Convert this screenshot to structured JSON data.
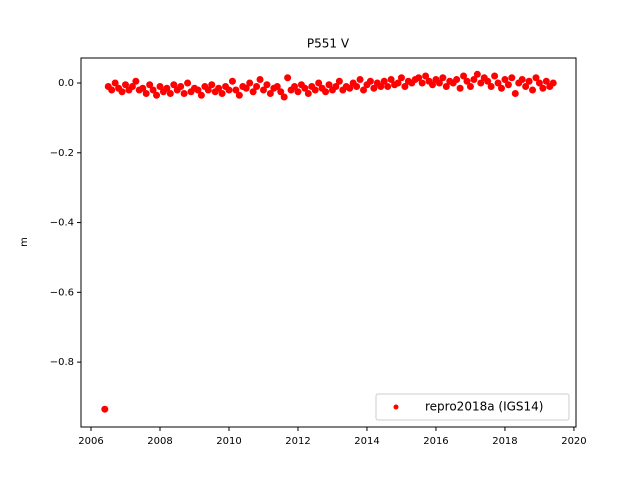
{
  "chart_data": {
    "type": "scatter",
    "title": "P551 V",
    "ylabel": "m",
    "x": [
      2006.4,
      2006.5,
      2006.6,
      2006.7,
      2006.8,
      2006.9,
      2007.0,
      2007.1,
      2007.2,
      2007.3,
      2007.4,
      2007.5,
      2007.6,
      2007.7,
      2007.8,
      2007.9,
      2008.0,
      2008.1,
      2008.2,
      2008.3,
      2008.4,
      2008.5,
      2008.6,
      2008.7,
      2008.8,
      2008.9,
      2009.0,
      2009.1,
      2009.2,
      2009.3,
      2009.4,
      2009.5,
      2009.6,
      2009.7,
      2009.8,
      2009.9,
      2010.0,
      2010.1,
      2010.2,
      2010.3,
      2010.4,
      2010.5,
      2010.6,
      2010.7,
      2010.8,
      2010.9,
      2011.0,
      2011.1,
      2011.2,
      2011.3,
      2011.4,
      2011.5,
      2011.6,
      2011.7,
      2011.8,
      2011.9,
      2012.0,
      2012.1,
      2012.2,
      2012.3,
      2012.4,
      2012.5,
      2012.6,
      2012.7,
      2012.8,
      2012.9,
      2013.0,
      2013.1,
      2013.2,
      2013.3,
      2013.4,
      2013.5,
      2013.6,
      2013.7,
      2013.8,
      2013.9,
      2014.0,
      2014.1,
      2014.2,
      2014.3,
      2014.4,
      2014.5,
      2014.6,
      2014.7,
      2014.8,
      2014.9,
      2015.0,
      2015.1,
      2015.2,
      2015.3,
      2015.4,
      2015.5,
      2015.6,
      2015.7,
      2015.8,
      2015.9,
      2016.0,
      2016.1,
      2016.2,
      2016.3,
      2016.4,
      2016.5,
      2016.6,
      2016.7,
      2016.8,
      2016.9,
      2017.0,
      2017.1,
      2017.2,
      2017.3,
      2017.4,
      2017.5,
      2017.6,
      2017.7,
      2017.8,
      2017.9,
      2018.0,
      2018.1,
      2018.2,
      2018.3,
      2018.4,
      2018.5,
      2018.6,
      2018.7,
      2018.8,
      2018.9,
      2019.0,
      2019.1,
      2019.2,
      2019.3,
      2019.4
    ],
    "series": [
      {
        "name": "repro2018a (IGS14)",
        "color": "#ff0000",
        "values": [
          -0.935,
          -0.01,
          -0.02,
          0.0,
          -0.015,
          -0.025,
          -0.005,
          -0.02,
          -0.01,
          0.005,
          -0.02,
          -0.015,
          -0.03,
          -0.005,
          -0.02,
          -0.035,
          -0.01,
          -0.025,
          -0.015,
          -0.03,
          -0.005,
          -0.02,
          -0.01,
          -0.03,
          0.0,
          -0.025,
          -0.015,
          -0.02,
          -0.035,
          -0.01,
          -0.02,
          -0.005,
          -0.025,
          -0.015,
          -0.03,
          -0.01,
          -0.02,
          0.005,
          -0.02,
          -0.035,
          -0.01,
          -0.015,
          0.0,
          -0.025,
          -0.01,
          0.01,
          -0.02,
          -0.005,
          -0.03,
          -0.015,
          -0.01,
          -0.025,
          -0.04,
          0.015,
          -0.02,
          -0.01,
          -0.025,
          -0.005,
          -0.015,
          -0.03,
          -0.01,
          -0.02,
          0.0,
          -0.015,
          -0.025,
          -0.005,
          -0.02,
          -0.01,
          0.005,
          -0.02,
          -0.01,
          -0.015,
          0.0,
          -0.01,
          0.01,
          -0.02,
          -0.005,
          0.005,
          -0.015,
          0.0,
          -0.01,
          0.005,
          -0.01,
          0.01,
          -0.005,
          0.0,
          0.015,
          -0.01,
          0.005,
          0.0,
          0.01,
          0.015,
          0.0,
          0.02,
          0.005,
          -0.005,
          0.01,
          0.0,
          0.015,
          -0.01,
          0.005,
          0.0,
          0.01,
          -0.015,
          0.02,
          0.005,
          -0.01,
          0.01,
          0.025,
          0.0,
          0.015,
          0.005,
          -0.01,
          0.02,
          0.0,
          -0.015,
          0.01,
          -0.005,
          0.015,
          -0.03,
          0.0,
          0.01,
          -0.01,
          0.005,
          -0.02,
          0.015,
          0.0,
          -0.015,
          0.005,
          -0.01,
          0.0
        ]
      }
    ],
    "xlim": [
      2005.71,
      2020.06
    ],
    "ylim": [
      -0.986,
      0.0717
    ],
    "xticks": [
      2006,
      2008,
      2010,
      2012,
      2014,
      2016,
      2018,
      2020
    ],
    "yticks": [
      {
        "value": -0.8,
        "label": "−0.8"
      },
      {
        "value": -0.6,
        "label": "−0.6"
      },
      {
        "value": -0.4,
        "label": "−0.4"
      },
      {
        "value": -0.2,
        "label": "−0.2"
      },
      {
        "value": 0.0,
        "label": "0.0"
      }
    ],
    "legend": "lower right"
  }
}
